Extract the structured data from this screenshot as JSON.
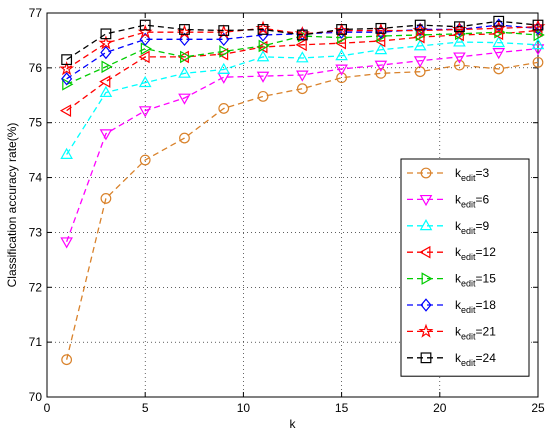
{
  "chart_data": {
    "type": "line",
    "title": "",
    "xlabel": "k",
    "ylabel": "Classification accuracy rate(%)",
    "xlim": [
      0,
      25
    ],
    "ylim": [
      70,
      77
    ],
    "xticks": [
      0,
      5,
      10,
      15,
      20,
      25
    ],
    "yticks": [
      70,
      71,
      72,
      73,
      74,
      75,
      76,
      77
    ],
    "grid": true,
    "legend_position": "center-right",
    "x": [
      1,
      3,
      5,
      7,
      9,
      11,
      13,
      15,
      17,
      19,
      21,
      23,
      25
    ],
    "series": [
      {
        "name": "k_edit=3",
        "label_main": "k",
        "label_sub": "edit",
        "label_value": "=3",
        "color": "#d9822b",
        "marker": "circle",
        "values": [
          70.68,
          73.62,
          74.32,
          74.72,
          75.26,
          75.48,
          75.62,
          75.82,
          75.9,
          75.93,
          76.05,
          75.98,
          76.1
        ]
      },
      {
        "name": "k_edit=6",
        "label_main": "k",
        "label_sub": "edit",
        "label_value": "=6",
        "color": "#ff00ff",
        "marker": "triangle-down",
        "values": [
          72.83,
          74.8,
          75.22,
          75.45,
          75.83,
          75.85,
          75.87,
          75.98,
          76.05,
          76.13,
          76.2,
          76.28,
          76.35
        ]
      },
      {
        "name": "k_edit=9",
        "label_main": "k",
        "label_sub": "edit",
        "label_value": "=9",
        "color": "#00ffff",
        "marker": "triangle-up",
        "values": [
          74.42,
          75.55,
          75.73,
          75.9,
          75.97,
          76.2,
          76.18,
          76.22,
          76.33,
          76.4,
          76.47,
          76.46,
          76.42
        ]
      },
      {
        "name": "k_edit=12",
        "label_main": "k",
        "label_sub": "edit",
        "label_value": "=12",
        "color": "#ff0000",
        "marker": "triangle-left",
        "values": [
          75.22,
          75.75,
          76.2,
          76.2,
          76.25,
          76.38,
          76.42,
          76.45,
          76.49,
          76.56,
          76.6,
          76.62,
          76.68
        ]
      },
      {
        "name": "k_edit=15",
        "label_main": "k",
        "label_sub": "edit",
        "label_value": "=15",
        "color": "#00cc00",
        "marker": "triangle-right",
        "values": [
          75.7,
          76.02,
          76.35,
          76.2,
          76.3,
          76.4,
          76.58,
          76.55,
          76.58,
          76.6,
          76.62,
          76.65,
          76.6
        ]
      },
      {
        "name": "k_edit=18",
        "label_main": "k",
        "label_sub": "edit",
        "label_value": "=18",
        "color": "#0000ff",
        "marker": "diamond",
        "values": [
          75.8,
          76.28,
          76.52,
          76.52,
          76.52,
          76.6,
          76.62,
          76.65,
          76.65,
          76.7,
          76.7,
          76.78,
          76.72
        ]
      },
      {
        "name": "k_edit=21",
        "label_main": "k",
        "label_sub": "edit",
        "label_value": "=21",
        "color": "#ff0000",
        "marker": "star",
        "values": [
          75.98,
          76.45,
          76.65,
          76.65,
          76.65,
          76.72,
          76.62,
          76.68,
          76.68,
          76.68,
          76.7,
          76.72,
          76.75
        ]
      },
      {
        "name": "k_edit=24",
        "label_main": "k",
        "label_sub": "edit",
        "label_value": "=24",
        "color": "#000000",
        "marker": "square",
        "values": [
          76.15,
          76.62,
          76.78,
          76.7,
          76.68,
          76.7,
          76.6,
          76.7,
          76.72,
          76.78,
          76.75,
          76.85,
          76.78
        ]
      }
    ]
  }
}
